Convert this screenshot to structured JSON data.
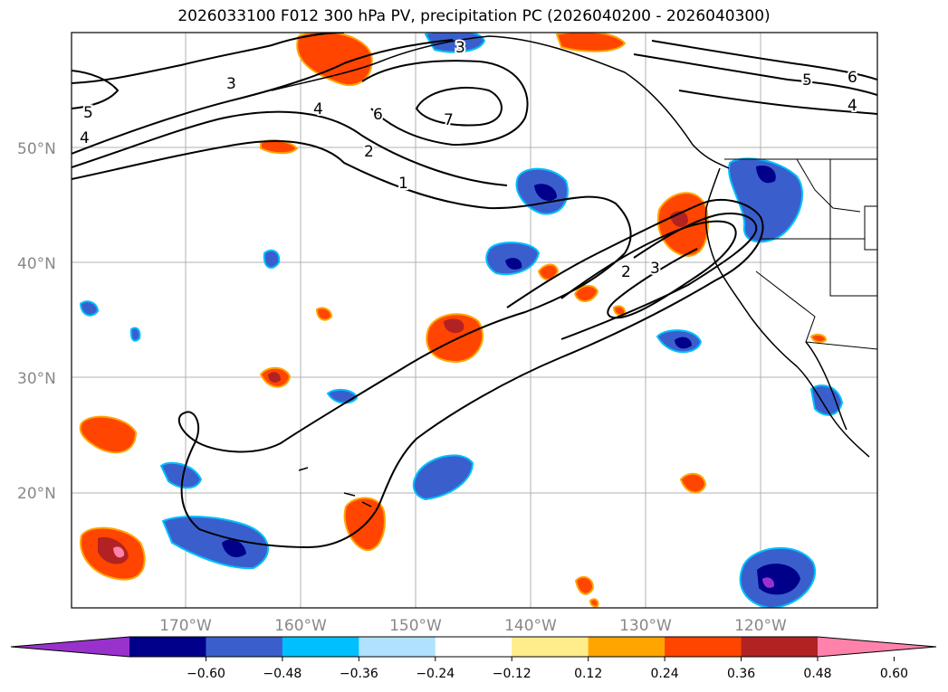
{
  "title": "2026033100 F012 300 hPa PV, precipitation PC (2026040200 - 2026040300)",
  "lat_labels": [
    "50°N",
    "40°N",
    "30°N",
    "20°N"
  ],
  "lon_labels": [
    "170°W",
    "160°W",
    "150°W",
    "140°W",
    "130°W",
    "120°W"
  ],
  "contour_labels": [
    "3",
    "7",
    "6",
    "4",
    "3",
    "2",
    "1",
    "5",
    "4",
    "5",
    "6",
    "4",
    "2",
    "3"
  ],
  "colorbar": {
    "colors": [
      "#9932cc",
      "#00008b",
      "#3a5fcd",
      "#00bfff",
      "#b0e2ff",
      "#ffffff",
      "#ffec8b",
      "#ffa500",
      "#ff4500",
      "#b22222",
      "#ff82ab"
    ],
    "tick_labels": [
      "−0.60",
      "−0.48",
      "−0.36",
      "−0.24",
      "−0.12",
      "0.12",
      "0.24",
      "0.36",
      "0.48",
      "0.60"
    ]
  }
}
